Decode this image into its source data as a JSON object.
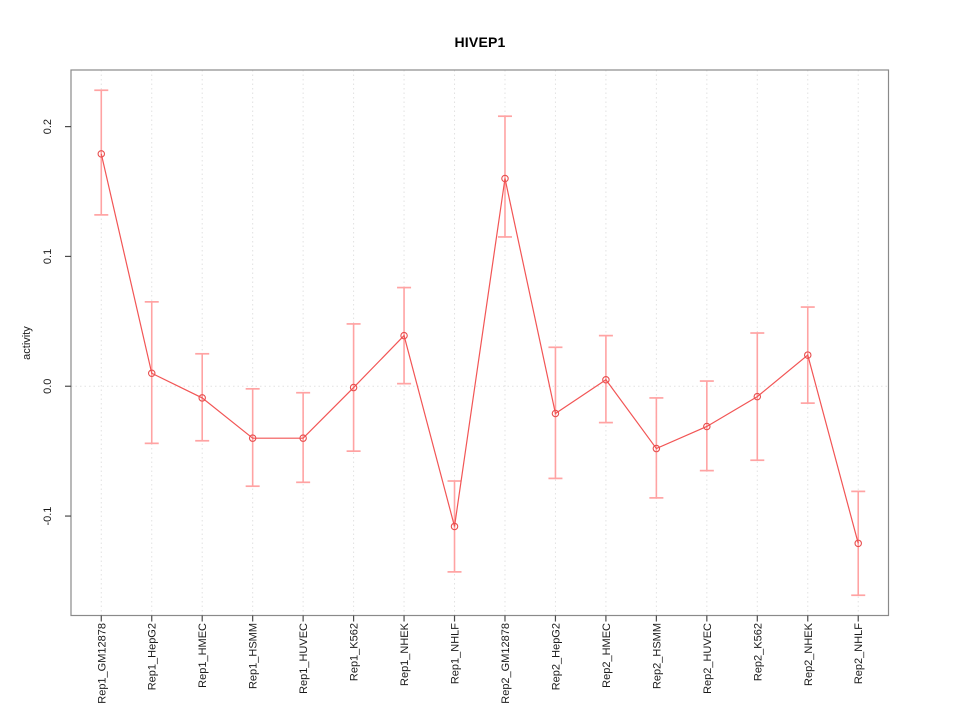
{
  "figure": {
    "background": "#ffffff"
  },
  "chart_data": {
    "type": "line",
    "title": "HIVEP1",
    "xlabel": "",
    "ylabel": "activity",
    "legend_position": "none",
    "marker": "open-circle",
    "grid": {
      "vertical_dotted": true,
      "horizontal_zero_dotted": true
    },
    "categories": [
      "Rep1_GM12878",
      "Rep1_HepG2",
      "Rep1_HMEC",
      "Rep1_HSMM",
      "Rep1_HUVEC",
      "Rep1_K562",
      "Rep1_NHEK",
      "Rep1_NHLF",
      "Rep2_GM12878",
      "Rep2_HepG2",
      "Rep2_HMEC",
      "Rep2_HSMM",
      "Rep2_HUVEC",
      "Rep2_K562",
      "Rep2_NHEK",
      "Rep2_NHLF"
    ],
    "series": [
      {
        "name": "activity",
        "values": [
          0.179,
          0.01,
          -0.009,
          -0.04,
          -0.04,
          -0.001,
          0.039,
          -0.108,
          0.16,
          -0.021,
          0.005,
          -0.048,
          -0.031,
          -0.008,
          0.024,
          -0.121
        ],
        "error_low": [
          0.132,
          -0.044,
          -0.042,
          -0.077,
          -0.074,
          -0.05,
          0.002,
          -0.143,
          0.115,
          -0.071,
          -0.028,
          -0.086,
          -0.065,
          -0.057,
          -0.013,
          -0.161
        ],
        "error_high": [
          0.228,
          0.065,
          0.025,
          -0.002,
          -0.005,
          0.048,
          0.076,
          -0.073,
          0.208,
          0.03,
          0.039,
          -0.009,
          0.004,
          0.041,
          0.061,
          -0.081
        ]
      }
    ],
    "ylim": [
      -0.1766,
      0.2436
    ],
    "yticks": [
      -0.1,
      0.0,
      0.1,
      0.2
    ],
    "ytick_labels": [
      "-0.1",
      "0.0",
      "0.1",
      "0.2"
    ],
    "colors": {
      "line": "#f25555",
      "marker": "#e84f4f",
      "error_bar": "#ffa3a3",
      "grid": "#e2e2e2",
      "box": "#8a8a8a",
      "tick": "#4a4a4a",
      "label": "#1a1a1a",
      "title": "#000000"
    }
  }
}
